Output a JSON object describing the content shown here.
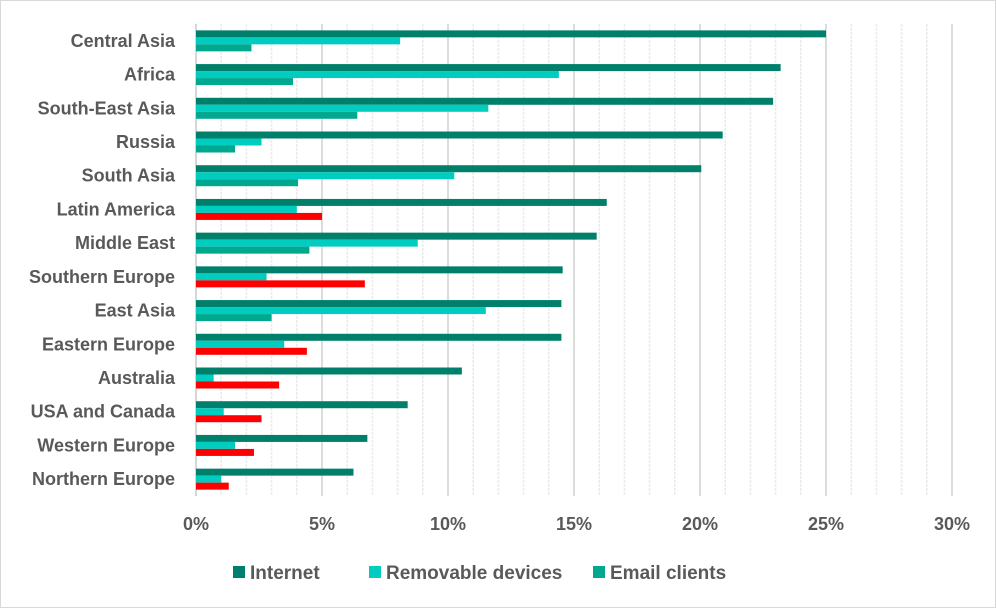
{
  "chart_data": {
    "type": "bar",
    "orientation": "horizontal",
    "title": "",
    "xlabel": "",
    "ylabel": "",
    "xlim": [
      0,
      30
    ],
    "x_tick_values": [
      0,
      5,
      10,
      15,
      20,
      25,
      30
    ],
    "x_tick_labels": [
      "0%",
      "5%",
      "10%",
      "15%",
      "20%",
      "25%",
      "30%"
    ],
    "minor_grid_step": 1,
    "grid": true,
    "legend_position": "bottom",
    "categories": [
      "Central Asia",
      "Africa",
      "South-East Asia",
      "Russia",
      "South Asia",
      "Latin America",
      "Middle East",
      "Southern Europe",
      "East Asia",
      "Eastern Europe",
      "Australia",
      "USA and Canada",
      "Western Europe",
      "Northern Europe"
    ],
    "series": [
      {
        "name": "Internet",
        "color": "#00806b",
        "values": [
          25.0,
          23.2,
          22.9,
          20.9,
          20.05,
          16.3,
          15.9,
          14.55,
          14.5,
          14.5,
          10.55,
          8.4,
          6.8,
          6.25
        ]
      },
      {
        "name": "Removable devices",
        "color": "#00ccc0",
        "values": [
          8.1,
          14.4,
          11.6,
          2.6,
          10.25,
          4.0,
          8.8,
          2.8,
          11.5,
          3.5,
          0.7,
          1.1,
          1.55,
          1.0
        ]
      },
      {
        "name": "Email clients",
        "color": "#00a88f",
        "values": [
          2.2,
          3.85,
          6.4,
          1.55,
          4.05,
          5.0,
          4.5,
          6.7,
          3.0,
          4.4,
          3.3,
          2.6,
          2.3,
          1.3
        ],
        "highlight_color": "#ff0000",
        "highlighted": [
          false,
          false,
          false,
          false,
          false,
          true,
          false,
          true,
          false,
          true,
          true,
          true,
          true,
          true
        ]
      }
    ]
  }
}
